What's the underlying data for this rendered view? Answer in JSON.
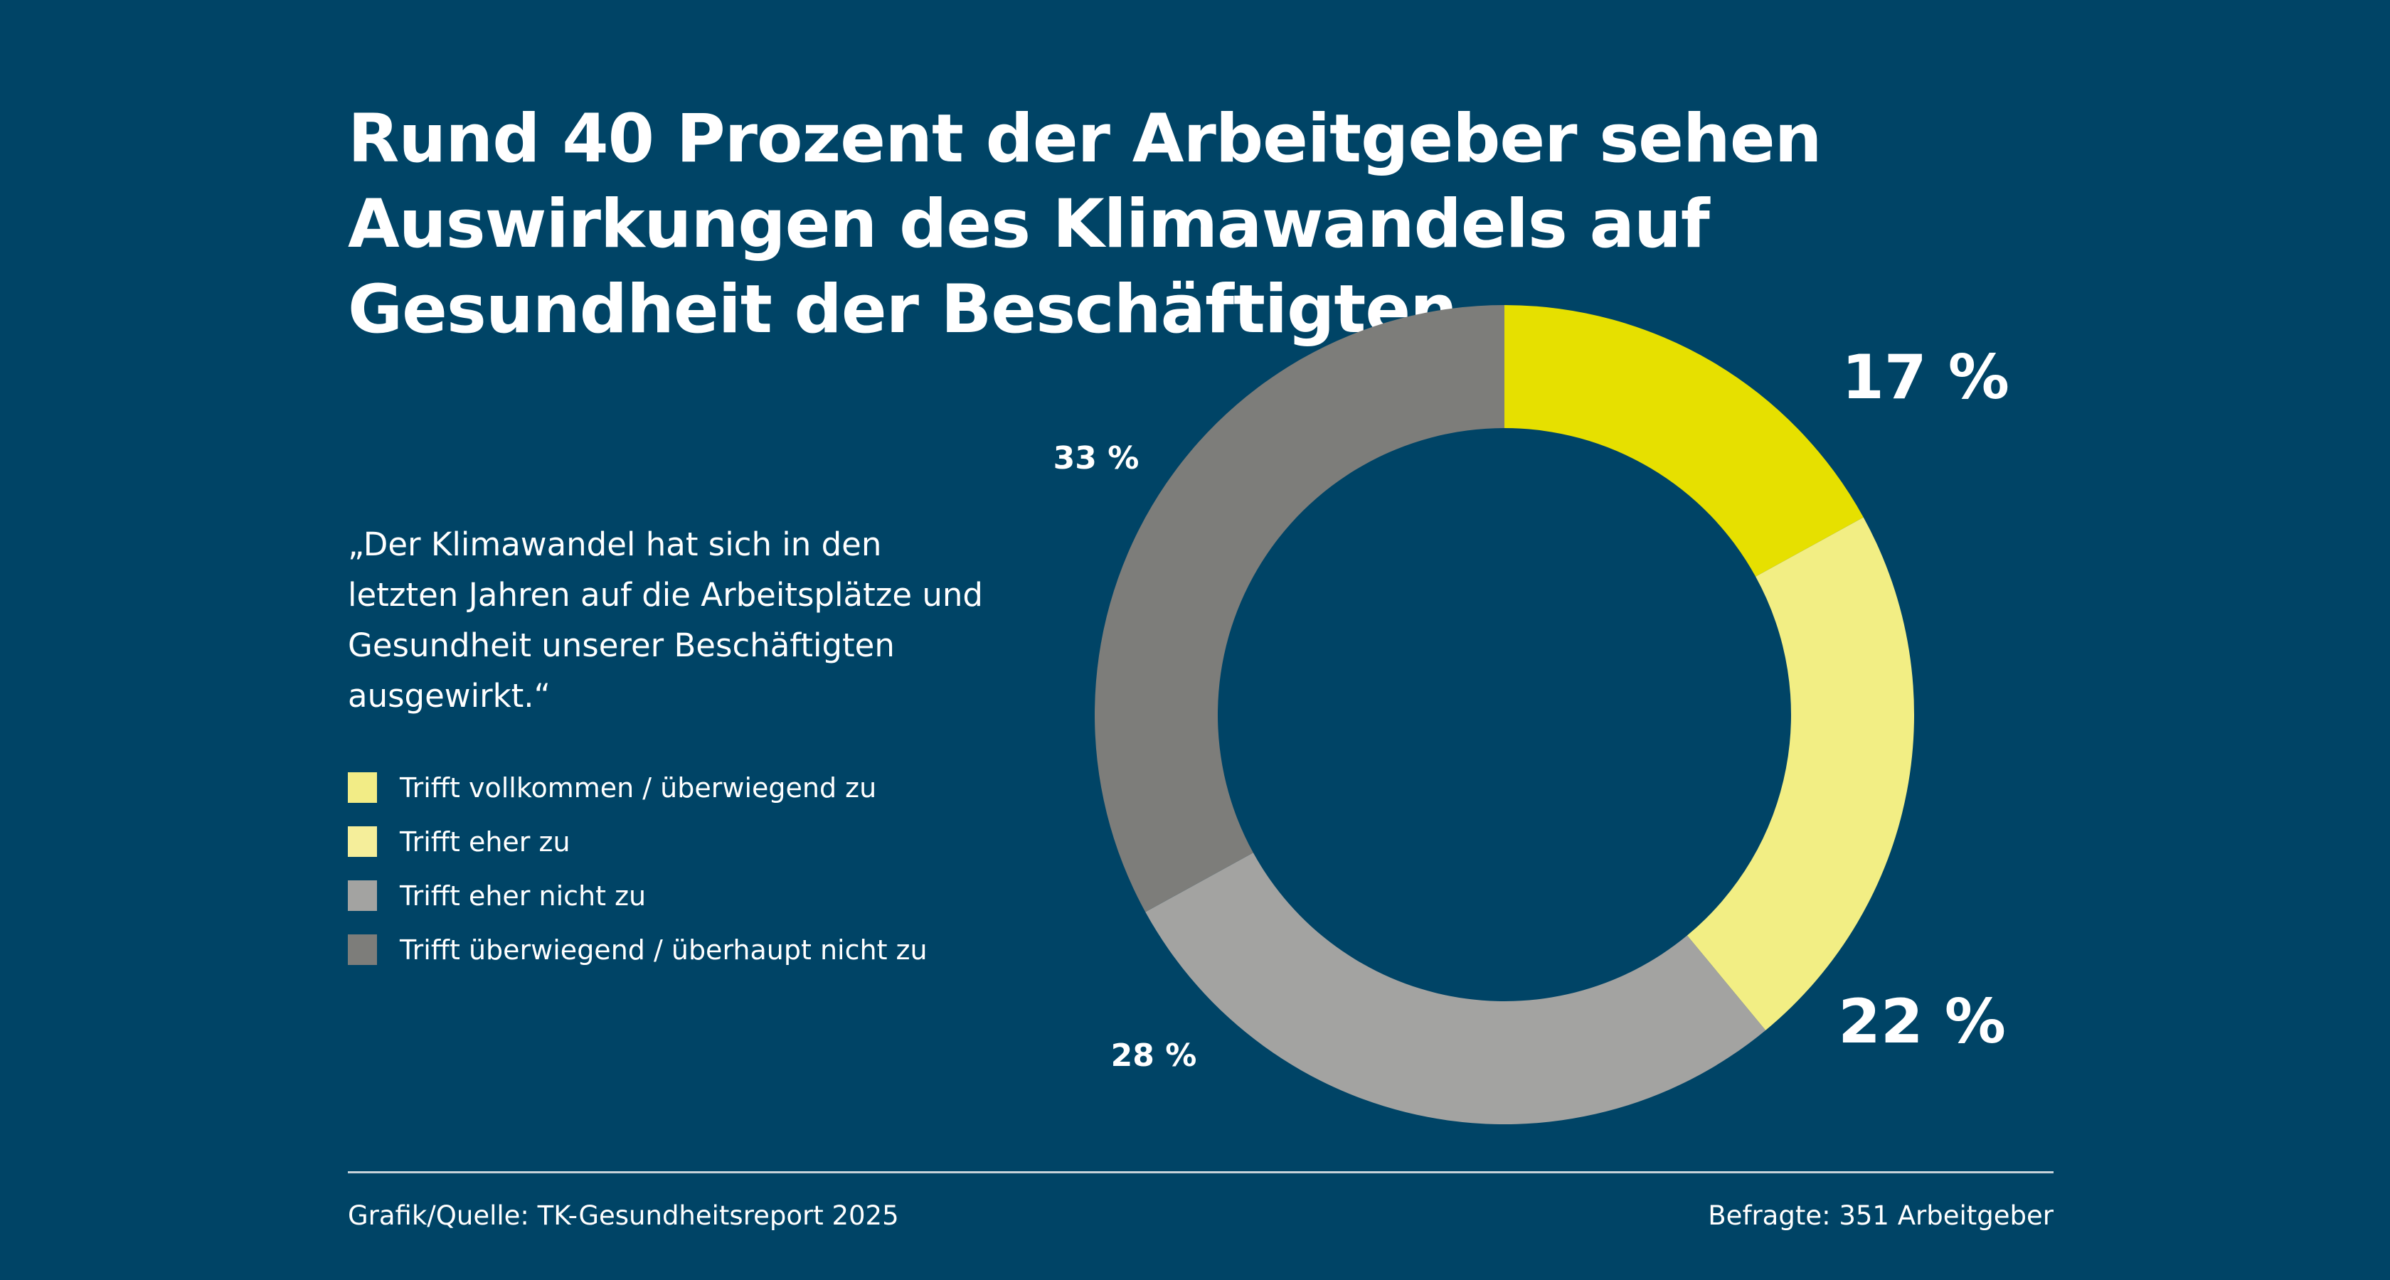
{
  "title": "Rund 40 Prozent der Arbeitgeber sehen Auswirkungen des Klimawandels auf Gesundheit der Beschäftigten",
  "quote": "„Der Klimawandel hat sich in den letzten Jahren auf die Arbeitsplätze und Gesundheit unserer Beschäftigten ausgewirkt.“",
  "colors": {
    "background": "#004466"
  },
  "chart_data": {
    "type": "pie",
    "variant": "donut",
    "categories": [
      "Trifft vollkommen / überwiegend zu",
      "Trifft eher zu",
      "Trifft eher nicht zu",
      "Trifft überwiegend / überhaupt nicht zu"
    ],
    "values": [
      17,
      22,
      28,
      33
    ],
    "labels": [
      "17 %",
      "22 %",
      "28 %",
      "33 %"
    ],
    "colors": [
      "#E6E000",
      "#F2EE84",
      "#A3A3A1",
      "#7D7D7A"
    ],
    "legend_colors": [
      "#F2EC86",
      "#F5EE9A",
      "#A3A3A1",
      "#7D7D7A"
    ],
    "legend_placement": "left",
    "unit": "%"
  },
  "footer": {
    "source": "Grafik/Quelle: TK-Gesundheitsreport 2025",
    "sample": "Befragte: 351 Arbeitgeber"
  }
}
